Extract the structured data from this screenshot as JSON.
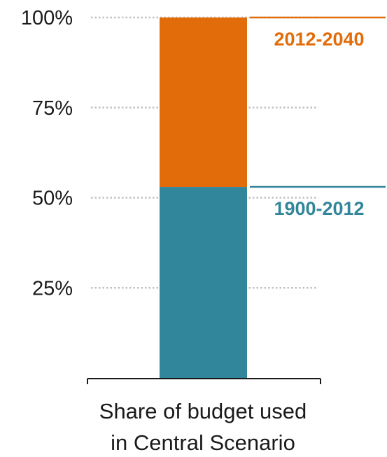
{
  "chart_data": {
    "type": "bar",
    "stacked": true,
    "categories": [
      "Share of budget used in Central Scenario"
    ],
    "xlabel_lines": [
      "Share of budget used",
      "in Central Scenario"
    ],
    "ylim": [
      0,
      100
    ],
    "yticks": [
      {
        "value": 25,
        "label": "25%"
      },
      {
        "value": 50,
        "label": "50%"
      },
      {
        "value": 75,
        "label": "75%"
      },
      {
        "value": 100,
        "label": "100%"
      }
    ],
    "grid": true,
    "grid_style": "dotted",
    "series": [
      {
        "name": "1900-2012",
        "values": [
          53
        ],
        "color": "#32869b"
      },
      {
        "name": "2012-2040",
        "values": [
          47
        ],
        "color": "#e36c0a"
      }
    ]
  }
}
